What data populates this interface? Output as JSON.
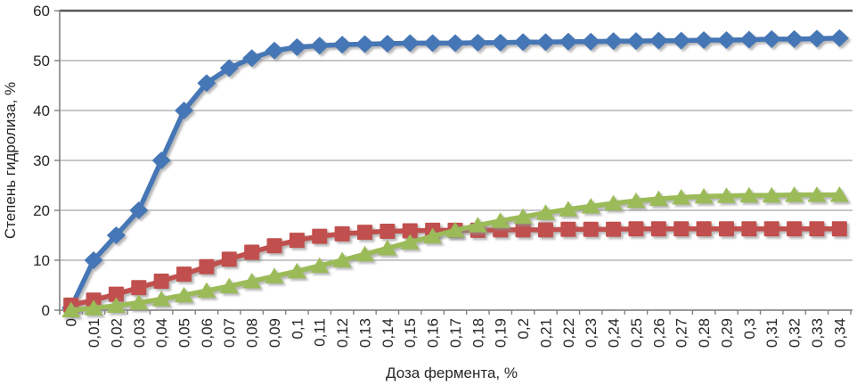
{
  "chart_data": {
    "type": "line",
    "title": "",
    "xlabel": "Доза фермента, %",
    "ylabel": "Степень гидролиза, %",
    "x_categories": [
      "0",
      "0,01",
      "0,02",
      "0,03",
      "0,04",
      "0,05",
      "0,06",
      "0,07",
      "0,08",
      "0,09",
      "0,1",
      "0,11",
      "0,12",
      "0,13",
      "0,14",
      "0,15",
      "0,16",
      "0,17",
      "0,18",
      "0,19",
      "0,2",
      "0,21",
      "0,22",
      "0,23",
      "0,24",
      "0,25",
      "0,26",
      "0,27",
      "0,28",
      "0,29",
      "0,3",
      "0,31",
      "0,32",
      "0,33",
      "0,34"
    ],
    "yticks": [
      0,
      10,
      20,
      30,
      40,
      50,
      60
    ],
    "ylim": [
      0,
      60
    ],
    "grid": "horizontal",
    "legend": "none",
    "series": [
      {
        "name": "blue-diamond",
        "marker": "diamond",
        "color": "#4576B5",
        "values": [
          0.5,
          10,
          15,
          20,
          30,
          40,
          45.5,
          48.5,
          50.5,
          52,
          52.7,
          53,
          53.2,
          53.3,
          53.4,
          53.5,
          53.5,
          53.5,
          53.6,
          53.6,
          53.7,
          53.7,
          53.8,
          53.8,
          53.9,
          53.9,
          54,
          54,
          54.1,
          54.1,
          54.2,
          54.3,
          54.3,
          54.4,
          54.5
        ]
      },
      {
        "name": "red-square",
        "marker": "square",
        "color": "#C0504D",
        "values": [
          1,
          2,
          3.2,
          4.5,
          5.8,
          7.2,
          8.7,
          10.2,
          11.6,
          12.9,
          14,
          14.8,
          15.3,
          15.6,
          15.8,
          15.9,
          16,
          16,
          16,
          16.1,
          16.1,
          16.1,
          16.2,
          16.2,
          16.2,
          16.3,
          16.3,
          16.3,
          16.3,
          16.3,
          16.3,
          16.3,
          16.3,
          16.3,
          16.3
        ]
      },
      {
        "name": "green-triangle",
        "marker": "triangle",
        "color": "#9BBB59",
        "values": [
          0,
          0.4,
          0.9,
          1.5,
          2.2,
          3,
          3.9,
          4.8,
          5.8,
          6.8,
          7.8,
          8.9,
          10,
          11.2,
          12.4,
          13.6,
          14.8,
          16,
          17,
          17.9,
          18.7,
          19.5,
          20.2,
          20.8,
          21.4,
          21.9,
          22.3,
          22.6,
          22.8,
          22.9,
          23,
          23,
          23.1,
          23.1,
          23.1
        ]
      }
    ],
    "style_colors": {
      "gridline": "#A6A6A6",
      "top_border": "#595959",
      "axis_line": "#808080",
      "tick_text": "#262626",
      "marker_shadow": "#909090"
    }
  }
}
